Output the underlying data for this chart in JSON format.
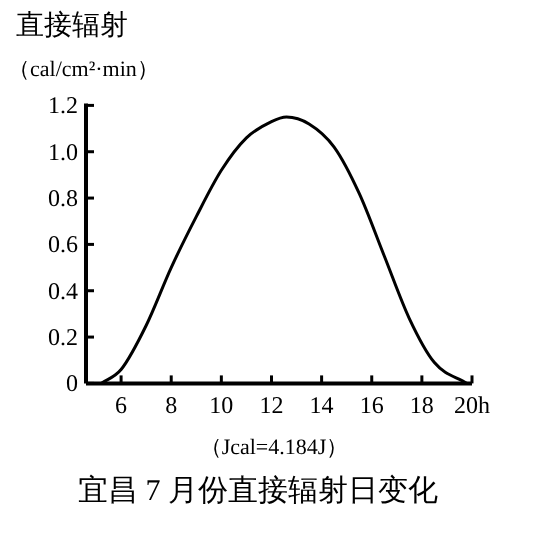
{
  "chart_data": {
    "type": "line",
    "title": "宜昌 7 月份直接辐射日变化",
    "ylabel": "直接辐射",
    "annotations": [
      "（cal/cm²·min）",
      "（Jcal=4.184J）"
    ],
    "x": [
      5.2,
      6,
      7,
      8,
      9,
      10,
      11,
      12,
      12.6,
      13.5,
      14.5,
      15.5,
      16.5,
      17.5,
      18.5,
      19.8
    ],
    "series": [
      {
        "color": "#000000",
        "values": [
          0,
          0.06,
          0.25,
          0.5,
          0.72,
          0.92,
          1.06,
          1.13,
          1.15,
          1.12,
          1.02,
          0.82,
          0.55,
          0.28,
          0.09,
          0
        ]
      }
    ],
    "xlim": [
      4.6,
      20
    ],
    "xticks": [
      6,
      8,
      10,
      12,
      14,
      16,
      18,
      {
        "value": 20,
        "label": "20h"
      }
    ],
    "ylim": [
      0,
      1.2
    ],
    "yticks": [
      0,
      0.2,
      0.4,
      0.6,
      0.8,
      {
        "value": 1,
        "label": "1.0"
      },
      1.2
    ],
    "marker": "none",
    "line_style": "solid"
  }
}
